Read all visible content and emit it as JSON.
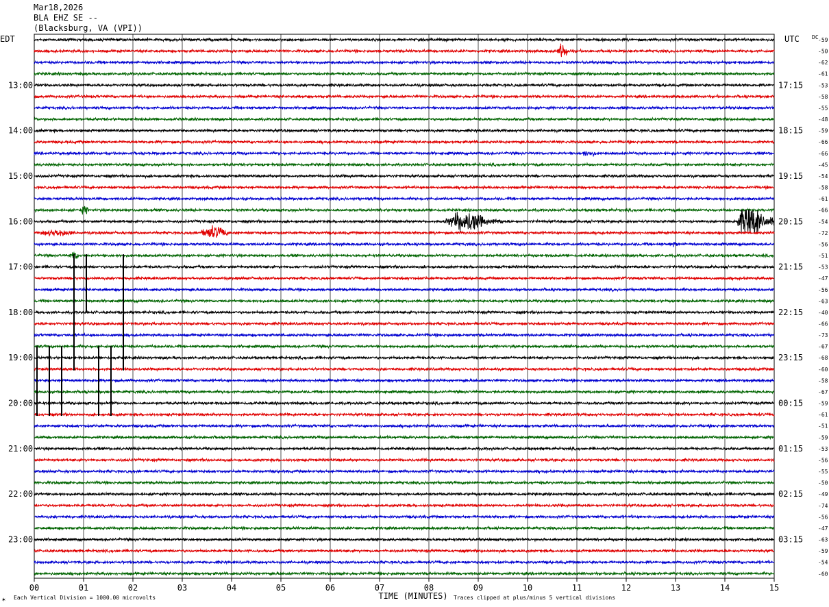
{
  "header": {
    "date": "Mar18,2026",
    "station": "BLA EHZ SE --",
    "location": "(Blacksburg, VA (VPI))"
  },
  "left_tz": "EDT",
  "right_tz": "UTC",
  "dc_label": "DC",
  "footer": {
    "scale": "Each Vertical Division = 1000.00 microvolts",
    "xlabel": "TIME (MINUTES)",
    "clip": "Traces clipped at plus/minus 5 vertical divisions",
    "logo": "✶"
  },
  "colors": [
    "#000000",
    "#e00000",
    "#0000d0",
    "#006400"
  ],
  "chart_data": {
    "type": "line",
    "title": "BLA EHZ SE -- (Blacksburg, VA (VPI))",
    "xlabel": "TIME (MINUTES)",
    "ylabel": "",
    "xlim": [
      0,
      15
    ],
    "x_ticks": [
      "00",
      "01",
      "02",
      "03",
      "04",
      "05",
      "06",
      "07",
      "08",
      "09",
      "10",
      "11",
      "12",
      "13",
      "14",
      "15"
    ],
    "grid": true,
    "row_minutes": 15,
    "left_hour_labels": [
      "13:00",
      "14:00",
      "15:00",
      "16:00",
      "17:00",
      "18:00",
      "19:00",
      "20:00",
      "21:00",
      "22:00",
      "23:00"
    ],
    "right_hour_labels": [
      "17:15",
      "18:15",
      "19:15",
      "20:15",
      "21:15",
      "22:15",
      "23:15",
      "00:15",
      "01:15",
      "02:15",
      "03:15"
    ],
    "dc_offsets": [
      -59,
      -50,
      -62,
      -61,
      -53,
      -58,
      -55,
      -48,
      -59,
      -66,
      -66,
      -45,
      -54,
      -58,
      -61,
      -66,
      -54,
      -72,
      -56,
      -51,
      -53,
      -47,
      -56,
      -63,
      -40,
      -66,
      -73,
      -67,
      -68,
      -60,
      -58,
      -67,
      -59,
      -61,
      -51,
      -59,
      -53,
      -56,
      -55,
      -50,
      -49,
      -74,
      -56,
      -47,
      -63,
      -59,
      -54,
      -60
    ],
    "events": [
      {
        "row": 1,
        "start_min": 10.6,
        "end_min": 10.9,
        "amplitude": 3.5
      },
      {
        "row": 10,
        "start_min": 11.0,
        "end_min": 11.6,
        "amplitude": 1.4
      },
      {
        "row": 15,
        "start_min": 0.9,
        "end_min": 1.2,
        "amplitude": 1.8
      },
      {
        "row": 16,
        "start_min": 8.3,
        "end_min": 9.5,
        "amplitude": 4.5
      },
      {
        "row": 16,
        "start_min": 14.2,
        "end_min": 15.0,
        "amplitude": 7.5
      },
      {
        "row": 17,
        "start_min": 0.0,
        "end_min": 1.2,
        "amplitude": 1.6
      },
      {
        "row": 17,
        "start_min": 3.3,
        "end_min": 4.2,
        "amplitude": 2.8
      },
      {
        "row": 19,
        "start_min": 0.7,
        "end_min": 1.0,
        "amplitude": 2.2
      },
      {
        "row": 18,
        "start_min": 12.9,
        "end_min": 13.1,
        "amplitude": 1.6
      }
    ],
    "spikes": [
      {
        "row": 24,
        "min": 0.75,
        "up": 5,
        "down": 0
      },
      {
        "row": 24,
        "min": 1.0,
        "up": 5,
        "down": 0
      },
      {
        "row": 24,
        "min": 1.75,
        "up": 5,
        "down": 0
      },
      {
        "row": 28,
        "min": 0.0,
        "up": 1,
        "down": 5
      },
      {
        "row": 28,
        "min": 0.25,
        "up": 1,
        "down": 5
      },
      {
        "row": 28,
        "min": 0.5,
        "up": 1,
        "down": 5
      },
      {
        "row": 28,
        "min": 1.25,
        "up": 1,
        "down": 5
      },
      {
        "row": 28,
        "min": 1.5,
        "up": 1,
        "down": 5
      },
      {
        "row": 28,
        "min": 1.75,
        "up": 1,
        "down": 1
      },
      {
        "row": 24,
        "min": 0.75,
        "up": 0,
        "down": 5
      },
      {
        "row": 24,
        "min": 1.75,
        "up": 0,
        "down": 5
      }
    ]
  }
}
